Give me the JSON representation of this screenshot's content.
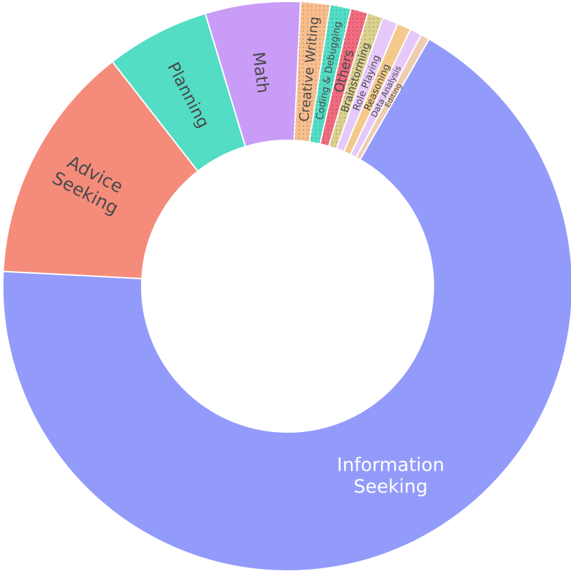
{
  "chart_data": {
    "type": "pie",
    "hole": true,
    "series": [
      {
        "label": [
          "Information",
          "Seeking"
        ],
        "value": 68.9,
        "color": "#939BFA",
        "text_color": "#ffffff"
      },
      {
        "label": [
          "Advice",
          "Seeking"
        ],
        "value": 13.9,
        "color": "#F58C7B",
        "text_color": "#4a4a4a"
      },
      {
        "label": [
          "Planning"
        ],
        "value": 6.0,
        "color": "#54DDC5",
        "text_color": "#4a4a4a"
      },
      {
        "label": [
          "Math"
        ],
        "value": 5.5,
        "color": "#C99CF8",
        "text_color": "#4a4a4a"
      },
      {
        "label": [
          "Creative Writing"
        ],
        "value": 1.7,
        "color": "#F9BE8E",
        "text_color": "#4a4a4a",
        "pattern": "dots"
      },
      {
        "label": [
          "Coding & Debugging"
        ],
        "value": 1.2,
        "color": "#54DDC5",
        "text_color": "#4a4a4a",
        "pattern": "dots"
      },
      {
        "label": [
          "Others"
        ],
        "value": 1.0,
        "color": "#F16B7F",
        "text_color": "#4a4a4a",
        "pattern": "dots"
      },
      {
        "label": [
          "Brainstorming"
        ],
        "value": 0.9,
        "color": "#DCD18F",
        "text_color": "#4a4a4a",
        "pattern": "dots"
      },
      {
        "label": [
          "Role Playing"
        ],
        "value": 0.9,
        "color": "#E6C9FA",
        "text_color": "#4a4a4a"
      },
      {
        "label": [
          "Reasoning"
        ],
        "value": 0.8,
        "color": "#F3CA8C",
        "text_color": "#4a4a4a"
      },
      {
        "label": [
          "Data Analysis"
        ],
        "value": 0.7,
        "color": "#E6C9FA",
        "text_color": "#4a4a4a"
      },
      {
        "label": [
          "Editing"
        ],
        "value": 0.5,
        "color": "#EFCCB2",
        "text_color": "#4a4a4a"
      }
    ]
  }
}
